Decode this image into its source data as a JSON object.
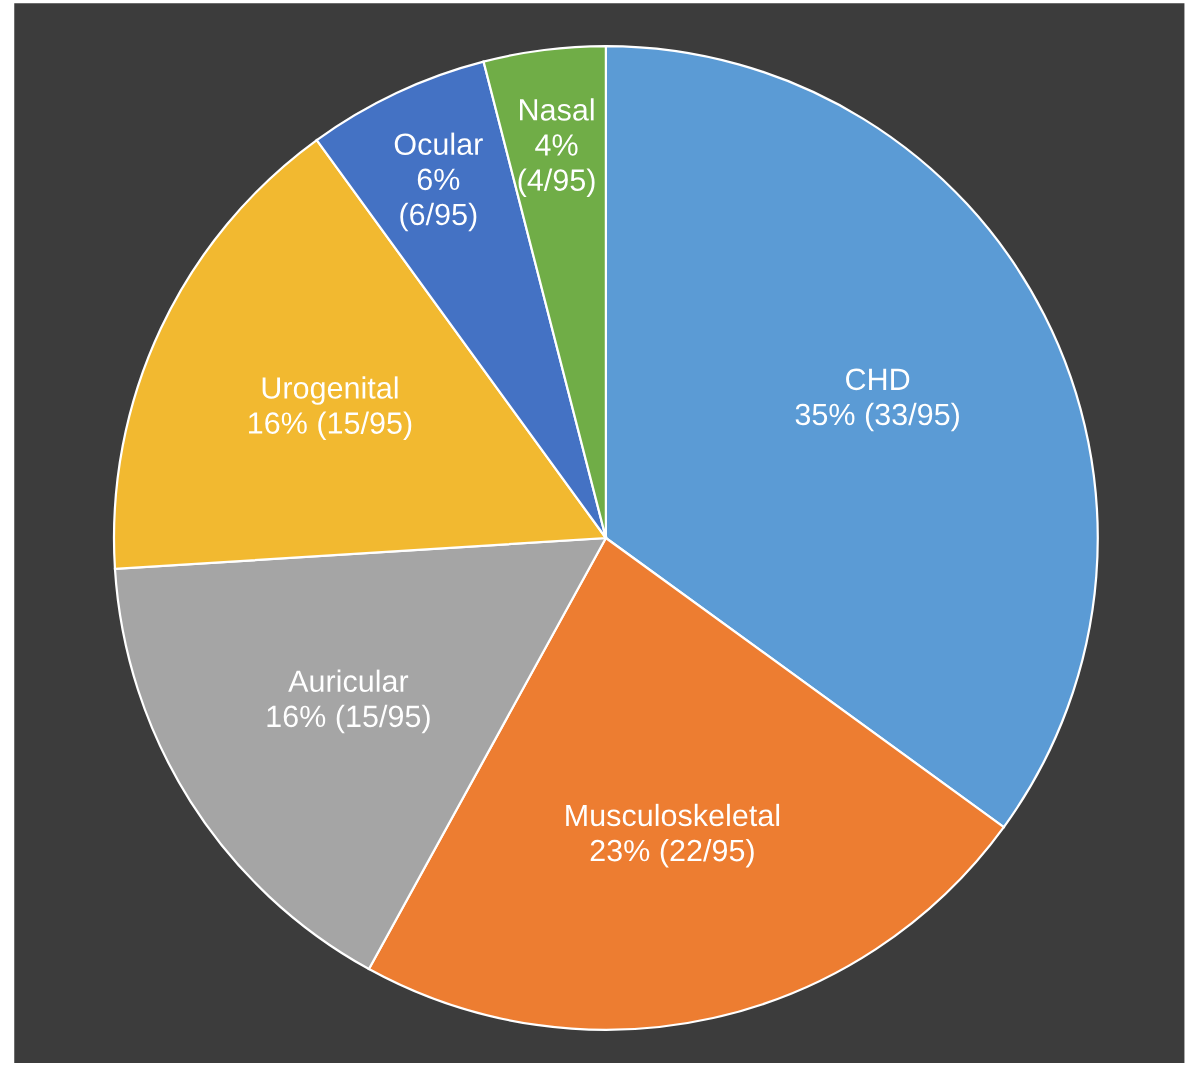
{
  "chart_data": {
    "type": "pie",
    "categories": [
      "CHD",
      "Musculoskeletal",
      "Auricular",
      "Urogenital",
      "Ocular",
      "Nasal"
    ],
    "values": [
      35,
      23,
      16,
      16,
      6,
      4
    ],
    "value_labels": [
      "35% (33/95)",
      "23% (22/95)",
      "16% (15/95)",
      "16% (15/95)",
      "6% (6/95)",
      "4% (4/95)"
    ],
    "colors": [
      "#5b9bd5",
      "#ed7d31",
      "#a5a5a5",
      "#f2b930",
      "#4472c4",
      "#70ad47"
    ],
    "legend": false
  }
}
